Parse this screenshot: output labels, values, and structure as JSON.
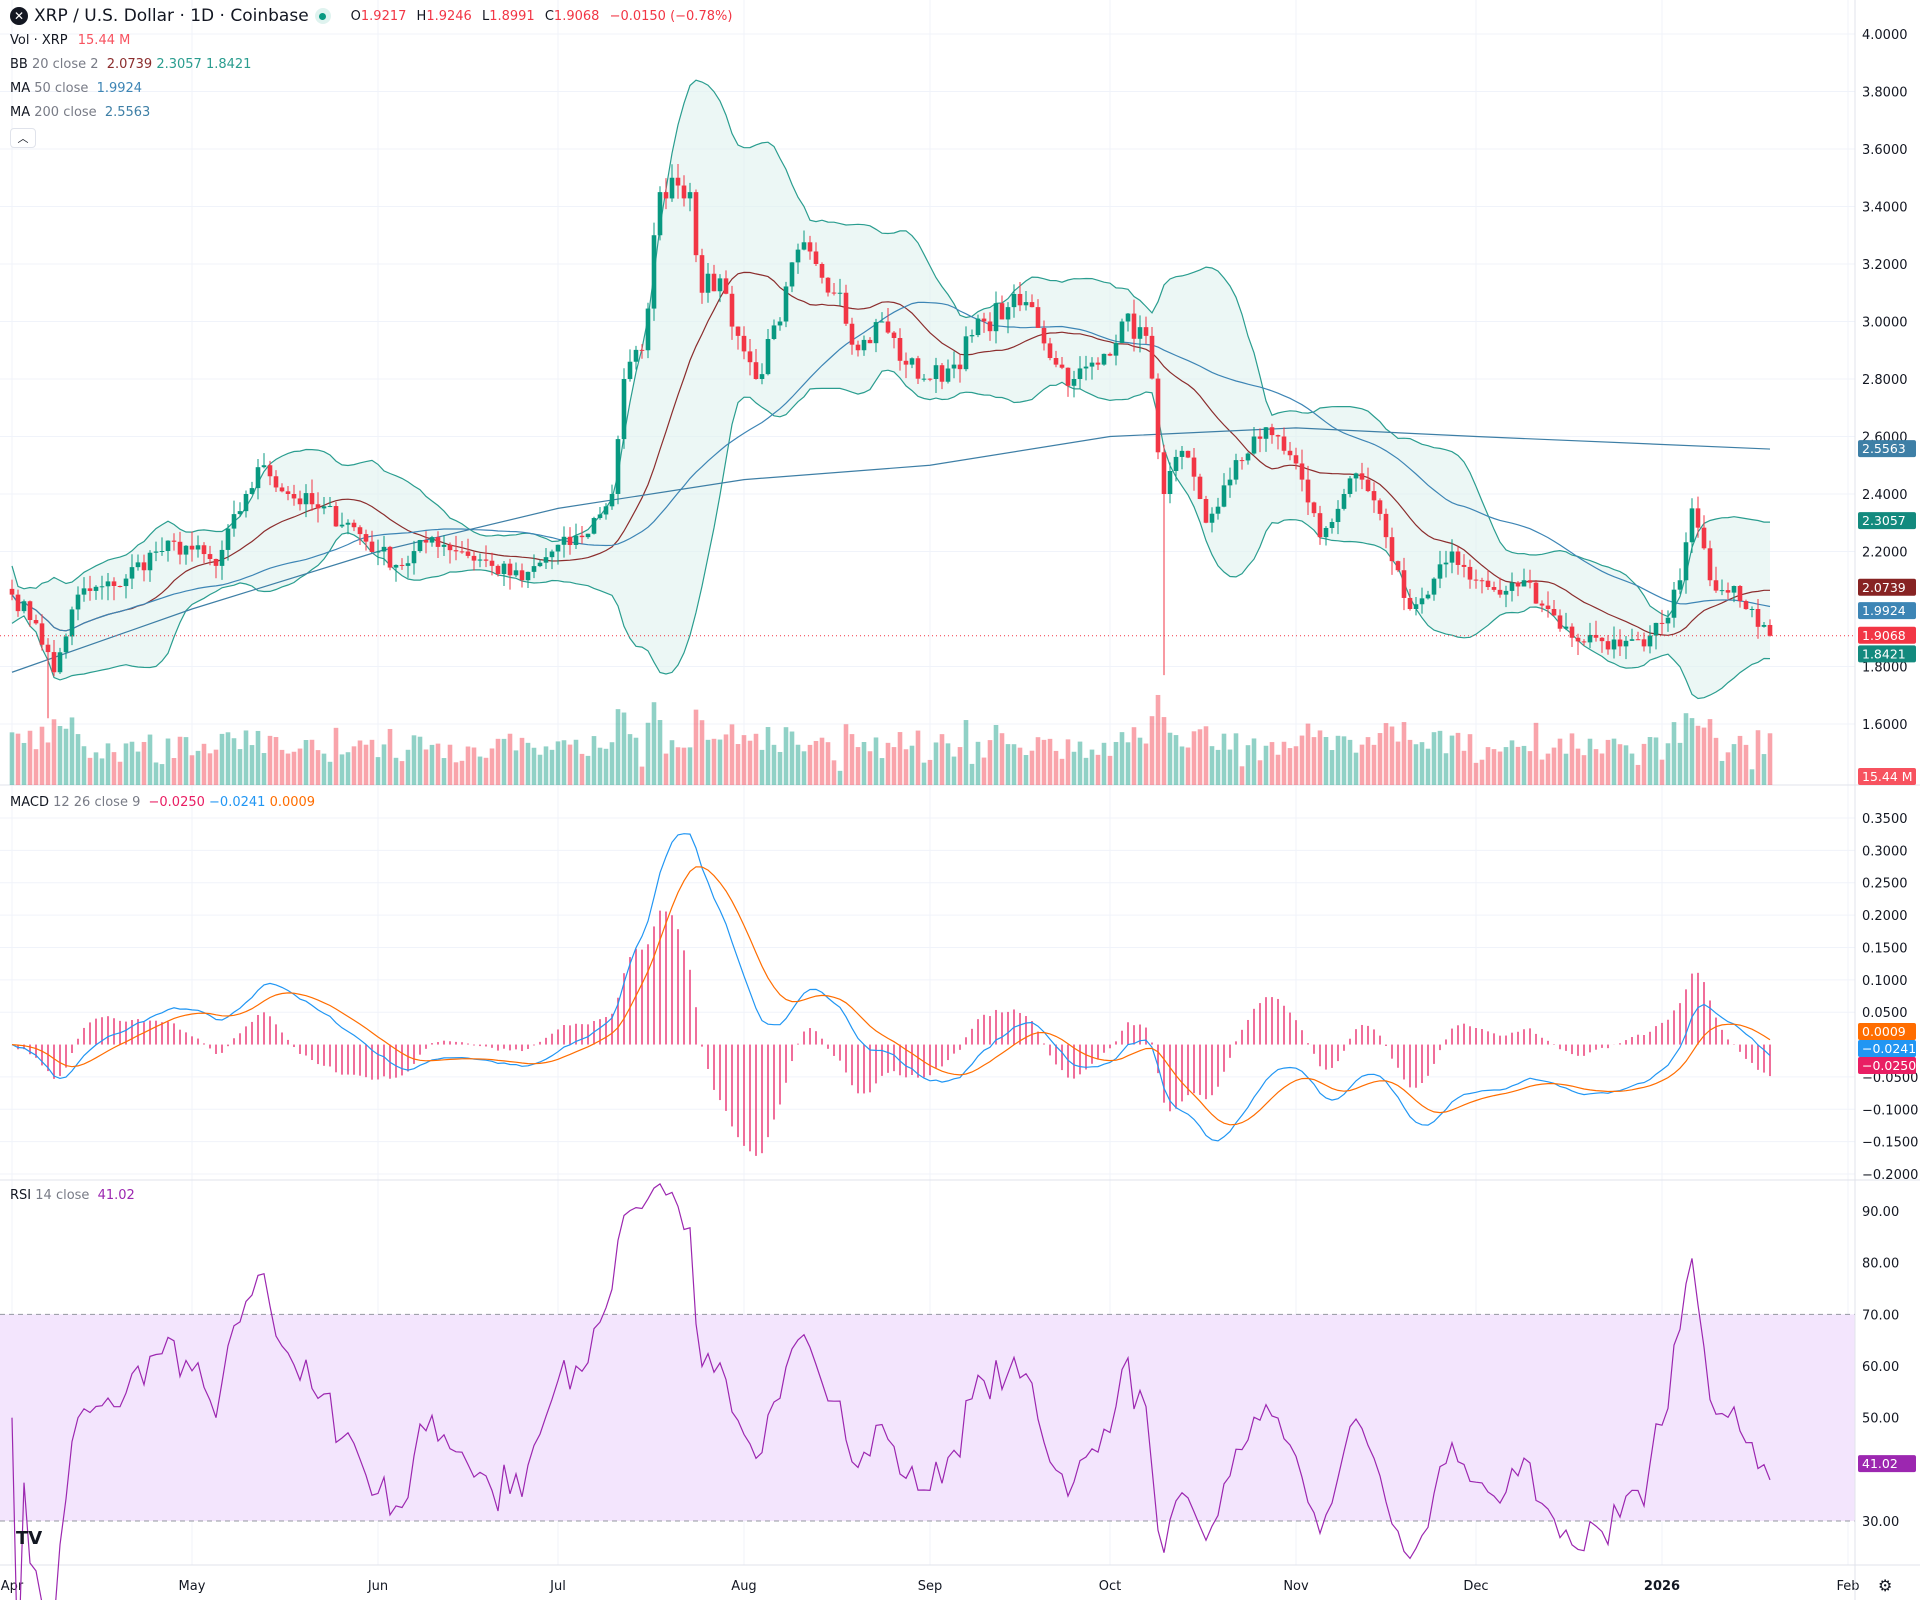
{
  "header": {
    "logo_icon": "xrp-logo-icon",
    "title": "XRP / U.S. Dollar · 1D · Coinbase",
    "o_label": "O",
    "o": "1.9217",
    "h_label": "H",
    "h": "1.9246",
    "l_label": "L",
    "l": "1.8991",
    "c_label": "C",
    "c": "1.9068",
    "change": "−0.0150 (−0.78%)"
  },
  "indicators": {
    "vol": {
      "name": "Vol · XRP",
      "value": "15.44 M"
    },
    "bb": {
      "name": "BB",
      "params": "20 close 2",
      "basis": "2.0739",
      "upper": "2.3057",
      "lower": "1.8421"
    },
    "ma50": {
      "name": "MA",
      "params": "50 close",
      "value": "1.9924"
    },
    "ma200": {
      "name": "MA",
      "params": "200 close",
      "value": "2.5563"
    },
    "macd": {
      "name": "MACD",
      "params": "12 26 close 9",
      "hist": "−0.0250",
      "macd": "−0.0241",
      "signal": "0.0009"
    },
    "rsi": {
      "name": "RSI",
      "params": "14 close",
      "value": "41.02"
    }
  },
  "colors": {
    "up": "#089981",
    "down": "#f23645",
    "bb_line": "#2a9d8f",
    "bb_fill": "#e0f2ef",
    "bb_basis": "#8b2d2d",
    "ma50": "#3d85b5",
    "ma200": "#3e7fa6",
    "macd": "#2196f3",
    "signal": "#ff6d00",
    "hist": "#e91e63",
    "rsi": "#9c27b0",
    "rsi_band": "#f3e5fd"
  },
  "chart_data": {
    "type": "candlestick",
    "price_axis": {
      "ticks": [
        "4.0000",
        "3.8000",
        "3.6000",
        "3.4000",
        "3.2000",
        "3.0000",
        "2.8000",
        "2.6000",
        "2.4000",
        "2.2000",
        "1.8000",
        "1.6000"
      ],
      "range": [
        1.52,
        4.02
      ]
    },
    "macd_axis": {
      "ticks": [
        "0.3500",
        "0.3000",
        "0.2500",
        "0.2000",
        "0.1500",
        "0.1000",
        "0.0500",
        "−0.0500",
        "−0.1000",
        "−0.1500",
        "−0.2000"
      ],
      "range": [
        -0.2,
        0.35
      ]
    },
    "rsi_axis": {
      "ticks": [
        "90.00",
        "80.00",
        "70.00",
        "60.00",
        "50.00",
        "30.00"
      ],
      "range": [
        25,
        92
      ],
      "bands": [
        30,
        70
      ]
    },
    "time_axis": [
      "Apr",
      "May",
      "Jun",
      "Jul",
      "Aug",
      "Sep",
      "Oct",
      "Nov",
      "Dec",
      "2026",
      "Feb"
    ],
    "time_axis_dates": [
      "2025-04-01",
      "2025-05-01",
      "2025-06-01",
      "2025-07-01",
      "2025-08-01",
      "2025-09-01",
      "2025-10-01",
      "2025-11-01",
      "2025-12-01",
      "2026-01-01",
      "2026-02-01"
    ],
    "closes": [
      [
        "2025-04-01",
        2.05
      ],
      [
        "2025-04-05",
        1.95
      ],
      [
        "2025-04-08",
        1.78
      ],
      [
        "2025-04-12",
        2.05
      ],
      [
        "2025-04-18",
        2.08
      ],
      [
        "2025-04-25",
        2.2
      ],
      [
        "2025-04-30",
        2.22
      ],
      [
        "2025-05-05",
        2.15
      ],
      [
        "2025-05-10",
        2.4
      ],
      [
        "2025-05-13",
        2.5
      ],
      [
        "2025-05-17",
        2.4
      ],
      [
        "2025-05-22",
        2.35
      ],
      [
        "2025-05-27",
        2.3
      ],
      [
        "2025-06-01",
        2.2
      ],
      [
        "2025-06-05",
        2.15
      ],
      [
        "2025-06-10",
        2.25
      ],
      [
        "2025-06-15",
        2.2
      ],
      [
        "2025-06-20",
        2.15
      ],
      [
        "2025-06-25",
        2.1
      ],
      [
        "2025-06-30",
        2.2
      ],
      [
        "2025-07-05",
        2.25
      ],
      [
        "2025-07-10",
        2.4
      ],
      [
        "2025-07-12",
        2.8
      ],
      [
        "2025-07-15",
        2.9
      ],
      [
        "2025-07-18",
        3.45
      ],
      [
        "2025-07-20",
        3.5
      ],
      [
        "2025-07-23",
        3.45
      ],
      [
        "2025-07-25",
        3.1
      ],
      [
        "2025-07-28",
        3.15
      ],
      [
        "2025-07-31",
        2.95
      ],
      [
        "2025-08-03",
        2.8
      ],
      [
        "2025-08-07",
        3.0
      ],
      [
        "2025-08-10",
        3.25
      ],
      [
        "2025-08-13",
        3.2
      ],
      [
        "2025-08-17",
        3.1
      ],
      [
        "2025-08-20",
        2.9
      ],
      [
        "2025-08-24",
        3.0
      ],
      [
        "2025-08-28",
        2.85
      ],
      [
        "2025-09-01",
        2.8
      ],
      [
        "2025-09-05",
        2.85
      ],
      [
        "2025-09-10",
        3.0
      ],
      [
        "2025-09-14",
        3.05
      ],
      [
        "2025-09-18",
        3.05
      ],
      [
        "2025-09-22",
        2.85
      ],
      [
        "2025-09-25",
        2.8
      ],
      [
        "2025-09-29",
        2.85
      ],
      [
        "2025-10-03",
        3.0
      ],
      [
        "2025-10-07",
        2.95
      ],
      [
        "2025-10-10",
        2.4
      ],
      [
        "2025-10-13",
        2.55
      ],
      [
        "2025-10-17",
        2.3
      ],
      [
        "2025-10-21",
        2.45
      ],
      [
        "2025-10-25",
        2.6
      ],
      [
        "2025-10-29",
        2.6
      ],
      [
        "2025-11-02",
        2.45
      ],
      [
        "2025-11-05",
        2.25
      ],
      [
        "2025-11-09",
        2.4
      ],
      [
        "2025-11-12",
        2.45
      ],
      [
        "2025-11-16",
        2.25
      ],
      [
        "2025-11-20",
        2.0
      ],
      [
        "2025-11-23",
        2.05
      ],
      [
        "2025-11-27",
        2.2
      ],
      [
        "2025-12-01",
        2.1
      ],
      [
        "2025-12-05",
        2.05
      ],
      [
        "2025-12-09",
        2.1
      ],
      [
        "2025-12-13",
        2.0
      ],
      [
        "2025-12-17",
        1.9
      ],
      [
        "2025-12-21",
        1.9
      ],
      [
        "2025-12-25",
        1.87
      ],
      [
        "2025-12-29",
        1.87
      ],
      [
        "2026-01-01",
        1.95
      ],
      [
        "2026-01-04",
        2.1
      ],
      [
        "2026-01-06",
        2.35
      ],
      [
        "2026-01-09",
        2.1
      ],
      [
        "2026-01-13",
        2.08
      ],
      [
        "2026-01-16",
        2.0
      ],
      [
        "2026-01-19",
        1.9068
      ]
    ],
    "ma200": [
      [
        "2025-04-01",
        1.78
      ],
      [
        "2025-05-01",
        2.0
      ],
      [
        "2025-06-01",
        2.2
      ],
      [
        "2025-07-01",
        2.35
      ],
      [
        "2025-08-01",
        2.45
      ],
      [
        "2025-09-01",
        2.5
      ],
      [
        "2025-10-01",
        2.6
      ],
      [
        "2025-11-01",
        2.63
      ],
      [
        "2025-12-01",
        2.6
      ],
      [
        "2026-01-19",
        2.5563
      ]
    ]
  }
}
